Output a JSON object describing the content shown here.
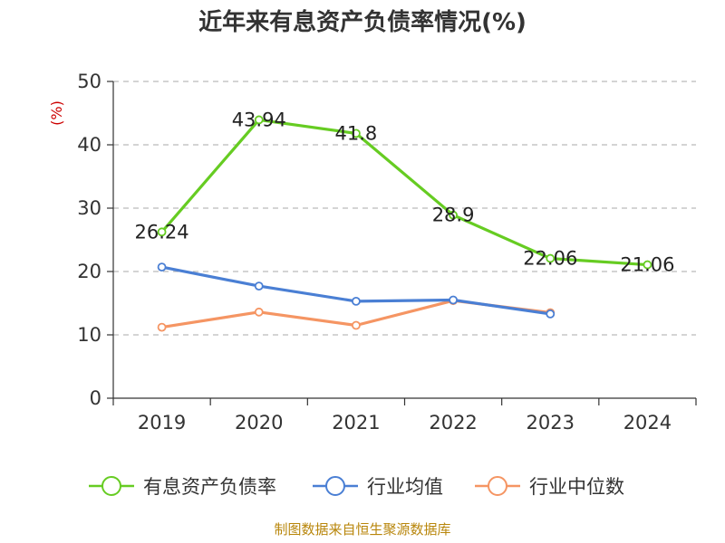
{
  "chart_data": {
    "type": "line",
    "title": "近年来有息资产负债率情况(%)",
    "ylabel": "(%)",
    "xlabel": "",
    "categories": [
      "2019",
      "2020",
      "2021",
      "2022",
      "2023",
      "2024"
    ],
    "ylim": [
      0,
      50
    ],
    "yticks": [
      0,
      10,
      20,
      30,
      40,
      50
    ],
    "grid": "horizontal-dashed",
    "legend_position": "bottom",
    "series": [
      {
        "name": "有息资产负债率",
        "color": "#66cc22",
        "values": [
          26.24,
          43.94,
          41.8,
          28.9,
          22.06,
          21.06
        ],
        "labels": [
          "26.24",
          "43.94",
          "41.8",
          "28.9",
          "22.06",
          "21.06"
        ]
      },
      {
        "name": "行业均值",
        "color": "#4a7fd4",
        "values": [
          20.7,
          17.7,
          15.3,
          15.5,
          13.3,
          null
        ]
      },
      {
        "name": "行业中位数",
        "color": "#f59563",
        "values": [
          11.2,
          13.6,
          11.5,
          15.4,
          13.5,
          null
        ]
      }
    ]
  },
  "footer": {
    "source": "制图数据来自恒生聚源数据库"
  }
}
